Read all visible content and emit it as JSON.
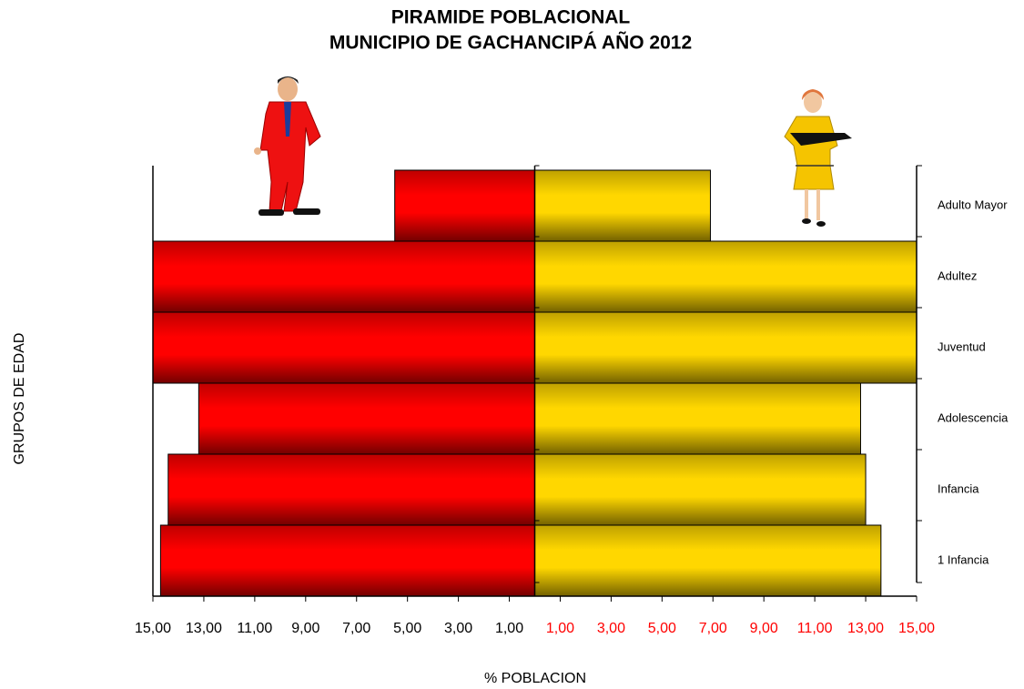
{
  "chart_data": {
    "type": "pyramid",
    "title": [
      "PIRAMIDE POBLACIONAL",
      "MUNICIPIO DE GACHANCIPÁ AÑO 2012"
    ],
    "x_label": "% POBLACION",
    "y_label": "GRUPOS DE EDAD",
    "categories": [
      "1  Infancia",
      "Infancia",
      "Adolescencia",
      "Juventud",
      "Adultez",
      "Adulto Mayor"
    ],
    "series": [
      {
        "color": "#ff0000",
        "values": [
          -14.7,
          -14.4,
          -13.2,
          -15,
          -15,
          -5.5
        ]
      },
      {
        "color": "#ffd700",
        "values": [
          13.6,
          13.0,
          12.8,
          15,
          15,
          6.9
        ]
      }
    ],
    "xlim": [
      -15,
      15
    ],
    "xticks": [
      {
        "value": -15,
        "label": "15,00"
      },
      {
        "value": -13,
        "label": "13,00"
      },
      {
        "value": -11,
        "label": "11,00"
      },
      {
        "value": -9,
        "label": "9,00"
      },
      {
        "value": -7,
        "label": "7,00"
      },
      {
        "value": -5,
        "label": "5,00"
      },
      {
        "value": -3,
        "label": "3,00"
      },
      {
        "value": -1,
        "label": "1,00"
      },
      {
        "value": 1,
        "label": "1,00"
      },
      {
        "value": 3,
        "label": "3,00"
      },
      {
        "value": 5,
        "label": "5,00"
      },
      {
        "value": 7,
        "label": "7,00"
      },
      {
        "value": 9,
        "label": "9,00"
      },
      {
        "value": 11,
        "label": "11,00"
      },
      {
        "value": 13,
        "label": "13,00"
      },
      {
        "value": 15,
        "label": "15,00"
      }
    ],
    "xtick_colors": {
      "negative": "#000000",
      "positive": "#ff0000"
    }
  }
}
